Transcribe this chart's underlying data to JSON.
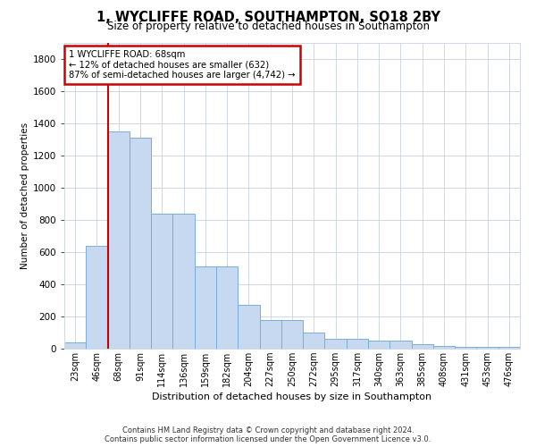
{
  "title": "1, WYCLIFFE ROAD, SOUTHAMPTON, SO18 2BY",
  "subtitle": "Size of property relative to detached houses in Southampton",
  "xlabel": "Distribution of detached houses by size in Southampton",
  "ylabel": "Number of detached properties",
  "footer_line1": "Contains HM Land Registry data © Crown copyright and database right 2024.",
  "footer_line2": "Contains public sector information licensed under the Open Government Licence v3.0.",
  "annotation_title": "1 WYCLIFFE ROAD: 68sqm",
  "annotation_line1": "← 12% of detached houses are smaller (632)",
  "annotation_line2": "87% of semi-detached houses are larger (4,742) →",
  "property_bin_index": 2,
  "bar_color": "#c6d9f0",
  "bar_edge_color": "#7aadd4",
  "vline_color": "#cc0000",
  "annotation_box_color": "#cc0000",
  "grid_color": "#d0d8e8",
  "background_color": "#ffffff",
  "categories": [
    "23sqm",
    "46sqm",
    "68sqm",
    "91sqm",
    "114sqm",
    "136sqm",
    "159sqm",
    "182sqm",
    "204sqm",
    "227sqm",
    "250sqm",
    "272sqm",
    "295sqm",
    "317sqm",
    "340sqm",
    "363sqm",
    "385sqm",
    "408sqm",
    "431sqm",
    "453sqm",
    "476sqm"
  ],
  "values": [
    40,
    640,
    1350,
    1310,
    840,
    840,
    510,
    510,
    270,
    175,
    175,
    100,
    60,
    60,
    50,
    50,
    30,
    15,
    10,
    10,
    10
  ],
  "ylim": [
    0,
    1900
  ],
  "yticks": [
    0,
    200,
    400,
    600,
    800,
    1000,
    1200,
    1400,
    1600,
    1800
  ]
}
